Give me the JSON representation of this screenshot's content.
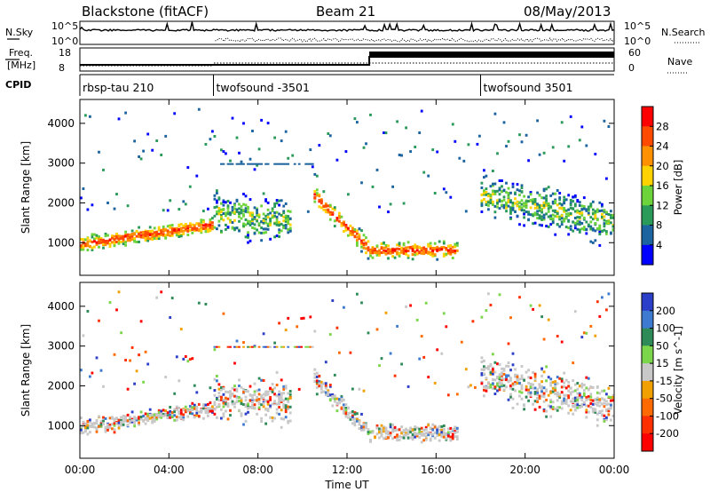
{
  "header": {
    "station": "Blackstone (fitACF)",
    "beam": "Beam 21",
    "date": "08/May/2013"
  },
  "status_panels": {
    "nsky_label": "N.Sky",
    "nsearch_label": "N.Search",
    "freq_label_1": "Freq.",
    "freq_label_2": "[MHz]",
    "nave_label": "Nave",
    "cpid_label": "CPID",
    "noise_ticks_left": [
      "10^5",
      "10^0"
    ],
    "noise_ticks_right": [
      "10^5",
      "10^0"
    ],
    "freq_ticks": [
      "18",
      "8"
    ],
    "nave_ticks": [
      "60",
      "0"
    ],
    "cpid_segments": [
      {
        "name": "rbsp-tau 210",
        "start_hour": 0
      },
      {
        "name": "twofsound -3501",
        "start_hour": 6
      },
      {
        "name": "twofsound 3501",
        "start_hour": 18
      }
    ]
  },
  "chart_data": [
    {
      "type": "heatmap",
      "title": "",
      "ylabel": "Slant Range [km]",
      "xlim": [
        0,
        24
      ],
      "ylim": [
        180,
        4600
      ],
      "yticks": [
        "4000",
        "3000",
        "2000",
        "1000"
      ],
      "colorbar_label": "Power [dB]",
      "colorbar_ticks": [
        "28",
        "24",
        "20",
        "16",
        "12",
        "8",
        "4"
      ],
      "colorbar_colors": [
        "#ff0000",
        "#ff4a00",
        "#ff9000",
        "#ffd200",
        "#6cd33a",
        "#2a9a5a",
        "#1c64a0",
        "#0000ff"
      ],
      "bands": [
        {
          "x": [
            0,
            6
          ],
          "center_km": [
            950,
            1450
          ],
          "width_km": 260,
          "level": "high"
        },
        {
          "x": [
            6,
            9.5
          ],
          "center_km": [
            1700,
            1500
          ],
          "width_km": 700,
          "level": "mixed"
        },
        {
          "x": [
            10.5,
            13
          ],
          "center_km": [
            2200,
            850
          ],
          "width_km": 320,
          "level": "high"
        },
        {
          "x": [
            13,
            17
          ],
          "center_km": [
            800,
            820
          ],
          "width_km": 280,
          "level": "high"
        },
        {
          "x": [
            18,
            24
          ],
          "center_km": [
            2200,
            1500
          ],
          "width_km": 700,
          "level": "mixed"
        }
      ]
    },
    {
      "type": "heatmap",
      "title": "",
      "ylabel": "Slant Range [km]",
      "xlabel": "Time UT",
      "xlim": [
        0,
        24
      ],
      "ylim": [
        180,
        4600
      ],
      "xticks": [
        "00:00",
        "04:00",
        "08:00",
        "12:00",
        "16:00",
        "20:00",
        "00:00"
      ],
      "yticks": [
        "4000",
        "3000",
        "2000",
        "1000"
      ],
      "colorbar_label": "Velocity [m s^-1]",
      "colorbar_ticks": [
        "200",
        "100",
        "50",
        "15",
        "-15",
        "-50",
        "-100",
        "-200"
      ],
      "colorbar_colors": [
        "#2b3fc8",
        "#3e7ad0",
        "#2e8b57",
        "#7cd64b",
        "#c8c8c8",
        "#f0a000",
        "#ff6a00",
        "#ff3000",
        "#ff0000"
      ]
    }
  ]
}
